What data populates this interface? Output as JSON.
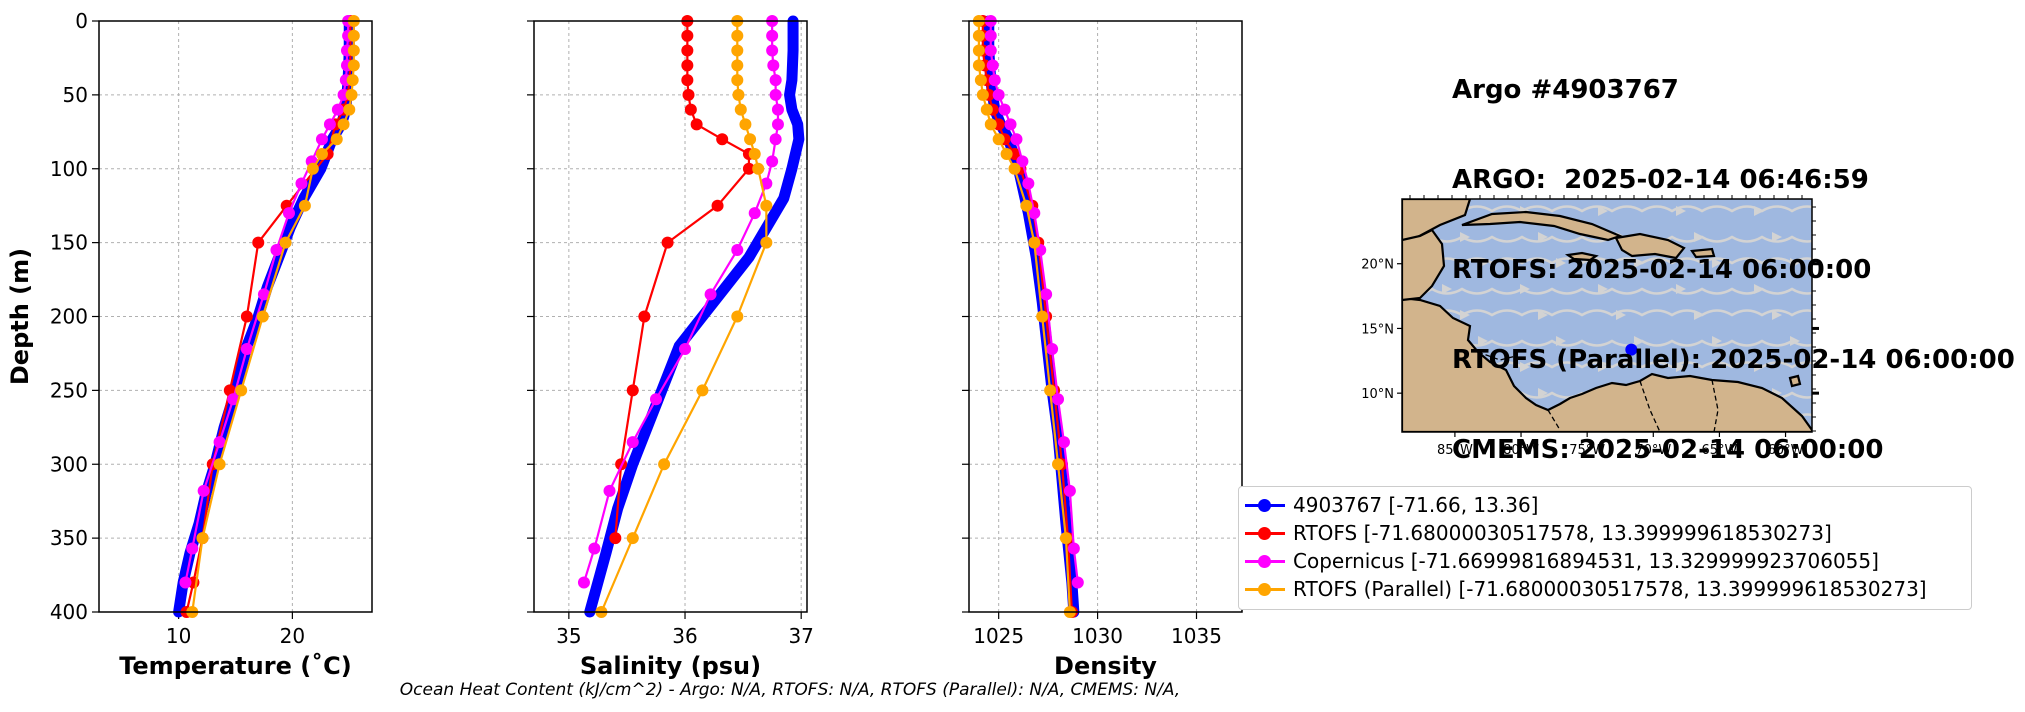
{
  "header": {
    "lines": [
      "Argo #4903767",
      "ARGO:  2025-02-14 06:46:59",
      "RTOFS: 2025-02-14 06:00:00",
      "RTOFS (Parallel): 2025-02-14 06:00:00",
      "CMEMS: 2025-02-14 06:00:00"
    ]
  },
  "footer": {
    "ohc": "Ocean Heat Content (kJ/cm^2) - Argo: N/A,  RTOFS: N/A,  RTOFS (Parallel): N/A,  CMEMS: N/A,"
  },
  "colors": {
    "argo": "#0000ff",
    "rtofs": "#ff0000",
    "copernicus": "#ff00ff",
    "parallel": "#ffa500"
  },
  "legend": [
    {
      "label": "4903767 [-71.66, 13.36]",
      "color": "#0000ff"
    },
    {
      "label": "RTOFS [-71.68000030517578, 13.399999618530273]",
      "color": "#ff0000"
    },
    {
      "label": "Copernicus [-71.66999816894531, 13.329999923706055]",
      "color": "#ff00ff"
    },
    {
      "label": "RTOFS (Parallel) [-71.68000030517578, 13.399999618530273]",
      "color": "#ffa500"
    }
  ],
  "map": {
    "lon_ticks": [
      "85°W",
      "80°W",
      "75°W",
      "70°W",
      "65°W",
      "60°W"
    ],
    "lat_ticks": [
      "20°N",
      "15°N",
      "10°N"
    ],
    "lon_range": [
      -89,
      -58
    ],
    "lat_range": [
      7,
      25
    ],
    "float_position": [
      -71.66,
      13.36
    ],
    "ocean_color": "#9fb8e0",
    "land_color": "#d2b48c",
    "stream_color": "#d3d3d3"
  },
  "chart_data": [
    {
      "type": "line",
      "xlabel": "Temperature (˚C)",
      "ylabel": "Depth (m)",
      "xlim": [
        3,
        27
      ],
      "ylim": [
        400,
        0
      ],
      "x_ticks": [
        "10",
        "20"
      ],
      "y_ticks": [
        "0",
        "50",
        "100",
        "150",
        "200",
        "250",
        "300",
        "350",
        "400"
      ],
      "grid": true,
      "series": [
        {
          "name": "4903767",
          "color": "#0000ff",
          "dense": true,
          "x": [
            25.0,
            25.0,
            24.9,
            24.8,
            24.7,
            24.3,
            23.5,
            22.5,
            21.0,
            19.8,
            18.8,
            17.8,
            17.0,
            16.0,
            15.0,
            14.0,
            13.2,
            12.4,
            11.8,
            11.0,
            10.4,
            10.0
          ],
          "y": [
            0,
            20,
            40,
            50,
            60,
            70,
            80,
            100,
            120,
            140,
            160,
            180,
            200,
            220,
            250,
            275,
            300,
            320,
            340,
            360,
            380,
            400
          ]
        },
        {
          "name": "RTOFS",
          "color": "#ff0000",
          "dense": false,
          "x": [
            25.1,
            25.1,
            25.1,
            25.1,
            25.0,
            24.9,
            24.5,
            23.8,
            23.1,
            19.5,
            17.0,
            16.0,
            14.5,
            13.0,
            12.1,
            11.3,
            10.7
          ],
          "y": [
            0,
            10,
            20,
            30,
            40,
            50,
            60,
            70,
            90,
            125,
            150,
            200,
            250,
            300,
            350,
            380,
            400
          ]
        },
        {
          "name": "Copernicus",
          "color": "#ff00ff",
          "dense": false,
          "x": [
            24.9,
            24.9,
            24.8,
            24.8,
            24.7,
            24.5,
            24.0,
            23.3,
            22.6,
            21.7,
            20.8,
            19.7,
            18.6,
            17.5,
            16.0,
            14.8,
            13.6,
            12.2,
            11.2,
            10.6
          ],
          "y": [
            0,
            10,
            20,
            30,
            40,
            50,
            60,
            70,
            80,
            95,
            110,
            130,
            155,
            185,
            222,
            256,
            285,
            318,
            357,
            380
          ]
        },
        {
          "name": "RTOFS (Parallel)",
          "color": "#ffa500",
          "dense": false,
          "x": [
            25.4,
            25.4,
            25.4,
            25.4,
            25.3,
            25.2,
            25.0,
            24.5,
            23.9,
            22.6,
            21.8,
            21.1,
            19.4,
            17.4,
            15.5,
            13.6,
            12.1,
            11.2
          ],
          "y": [
            0,
            10,
            20,
            30,
            40,
            50,
            60,
            70,
            80,
            90,
            100,
            125,
            150,
            200,
            250,
            300,
            350,
            400
          ]
        }
      ]
    },
    {
      "type": "line",
      "xlabel": "Salinity (psu)",
      "ylabel": "",
      "xlim": [
        34.7,
        37.05
      ],
      "ylim": [
        400,
        0
      ],
      "x_ticks": [
        "35",
        "36",
        "37"
      ],
      "y_ticks": [],
      "grid": true,
      "series": [
        {
          "name": "4903767",
          "color": "#0000ff",
          "dense": true,
          "x": [
            36.93,
            36.93,
            36.92,
            36.9,
            36.92,
            36.97,
            36.98,
            36.92,
            36.85,
            36.7,
            36.55,
            36.35,
            36.15,
            35.95,
            35.8,
            35.65,
            35.55,
            35.42,
            35.32,
            35.25,
            35.18
          ],
          "y": [
            0,
            20,
            40,
            50,
            60,
            70,
            80,
            100,
            120,
            140,
            160,
            180,
            200,
            220,
            250,
            280,
            300,
            330,
            360,
            380,
            400
          ]
        },
        {
          "name": "RTOFS",
          "color": "#ff0000",
          "dense": false,
          "x": [
            36.02,
            36.02,
            36.02,
            36.02,
            36.02,
            36.03,
            36.05,
            36.1,
            36.32,
            36.55,
            36.55,
            36.28,
            35.85,
            35.65,
            35.55,
            35.45,
            35.4
          ],
          "y": [
            0,
            10,
            20,
            30,
            40,
            50,
            60,
            70,
            80,
            90,
            100,
            125,
            150,
            200,
            250,
            300,
            350
          ]
        },
        {
          "name": "Copernicus",
          "color": "#ff00ff",
          "dense": false,
          "x": [
            36.75,
            36.75,
            36.75,
            36.76,
            36.78,
            36.78,
            36.8,
            36.8,
            36.78,
            36.75,
            36.7,
            36.6,
            36.45,
            36.22,
            36.0,
            35.75,
            35.55,
            35.35,
            35.22,
            35.13
          ],
          "y": [
            0,
            10,
            20,
            30,
            40,
            50,
            60,
            70,
            80,
            95,
            110,
            130,
            155,
            185,
            222,
            256,
            285,
            318,
            357,
            380
          ]
        },
        {
          "name": "RTOFS (Parallel)",
          "color": "#ffa500",
          "dense": false,
          "x": [
            36.45,
            36.45,
            36.45,
            36.45,
            36.45,
            36.46,
            36.48,
            36.52,
            36.56,
            36.6,
            36.63,
            36.7,
            36.7,
            36.45,
            36.15,
            35.82,
            35.55,
            35.28
          ],
          "y": [
            0,
            10,
            20,
            30,
            40,
            50,
            60,
            70,
            80,
            90,
            100,
            125,
            150,
            200,
            250,
            300,
            350,
            400
          ]
        }
      ]
    },
    {
      "type": "line",
      "xlabel": "Density",
      "ylabel": "",
      "xlim": [
        1023.5,
        1037.3
      ],
      "ylim": [
        400,
        0
      ],
      "x_ticks": [
        "1025",
        "1030",
        "1035"
      ],
      "y_ticks": [],
      "grid": true,
      "series": [
        {
          "name": "4903767",
          "color": "#0000ff",
          "dense": true,
          "x": [
            1024.5,
            1024.5,
            1024.6,
            1024.7,
            1024.8,
            1025.1,
            1025.5,
            1026.0,
            1026.5,
            1026.9,
            1027.2,
            1027.45,
            1027.7,
            1028.0,
            1028.2,
            1028.4,
            1028.55,
            1028.7,
            1028.8
          ],
          "y": [
            0,
            20,
            40,
            50,
            60,
            70,
            80,
            100,
            130,
            160,
            190,
            220,
            250,
            280,
            310,
            340,
            360,
            380,
            400
          ]
        },
        {
          "name": "RTOFS",
          "color": "#ff0000",
          "dense": false,
          "x": [
            1024.2,
            1024.2,
            1024.2,
            1024.3,
            1024.4,
            1024.5,
            1024.7,
            1025.0,
            1025.3,
            1025.8,
            1026.1,
            1026.7,
            1027.0,
            1027.4,
            1027.8,
            1028.2,
            1028.5,
            1028.7
          ],
          "y": [
            0,
            10,
            20,
            30,
            40,
            50,
            60,
            70,
            80,
            90,
            100,
            125,
            150,
            200,
            250,
            300,
            350,
            400
          ]
        },
        {
          "name": "Copernicus",
          "color": "#ff00ff",
          "dense": false,
          "x": [
            1024.6,
            1024.6,
            1024.6,
            1024.7,
            1024.8,
            1025.0,
            1025.3,
            1025.6,
            1025.9,
            1026.2,
            1026.5,
            1026.8,
            1027.1,
            1027.4,
            1027.7,
            1028.0,
            1028.3,
            1028.6,
            1028.8,
            1029.0
          ],
          "y": [
            0,
            10,
            20,
            30,
            40,
            50,
            60,
            70,
            80,
            95,
            110,
            130,
            155,
            185,
            222,
            256,
            285,
            318,
            357,
            380
          ]
        },
        {
          "name": "RTOFS (Parallel)",
          "color": "#ffa500",
          "dense": false,
          "x": [
            1024.0,
            1024.0,
            1024.0,
            1024.0,
            1024.1,
            1024.2,
            1024.4,
            1024.6,
            1025.0,
            1025.4,
            1025.8,
            1026.4,
            1026.8,
            1027.2,
            1027.6,
            1028.0,
            1028.4,
            1028.6
          ],
          "y": [
            0,
            10,
            20,
            30,
            40,
            50,
            60,
            70,
            80,
            90,
            100,
            125,
            150,
            200,
            250,
            300,
            350,
            400
          ]
        }
      ]
    }
  ]
}
